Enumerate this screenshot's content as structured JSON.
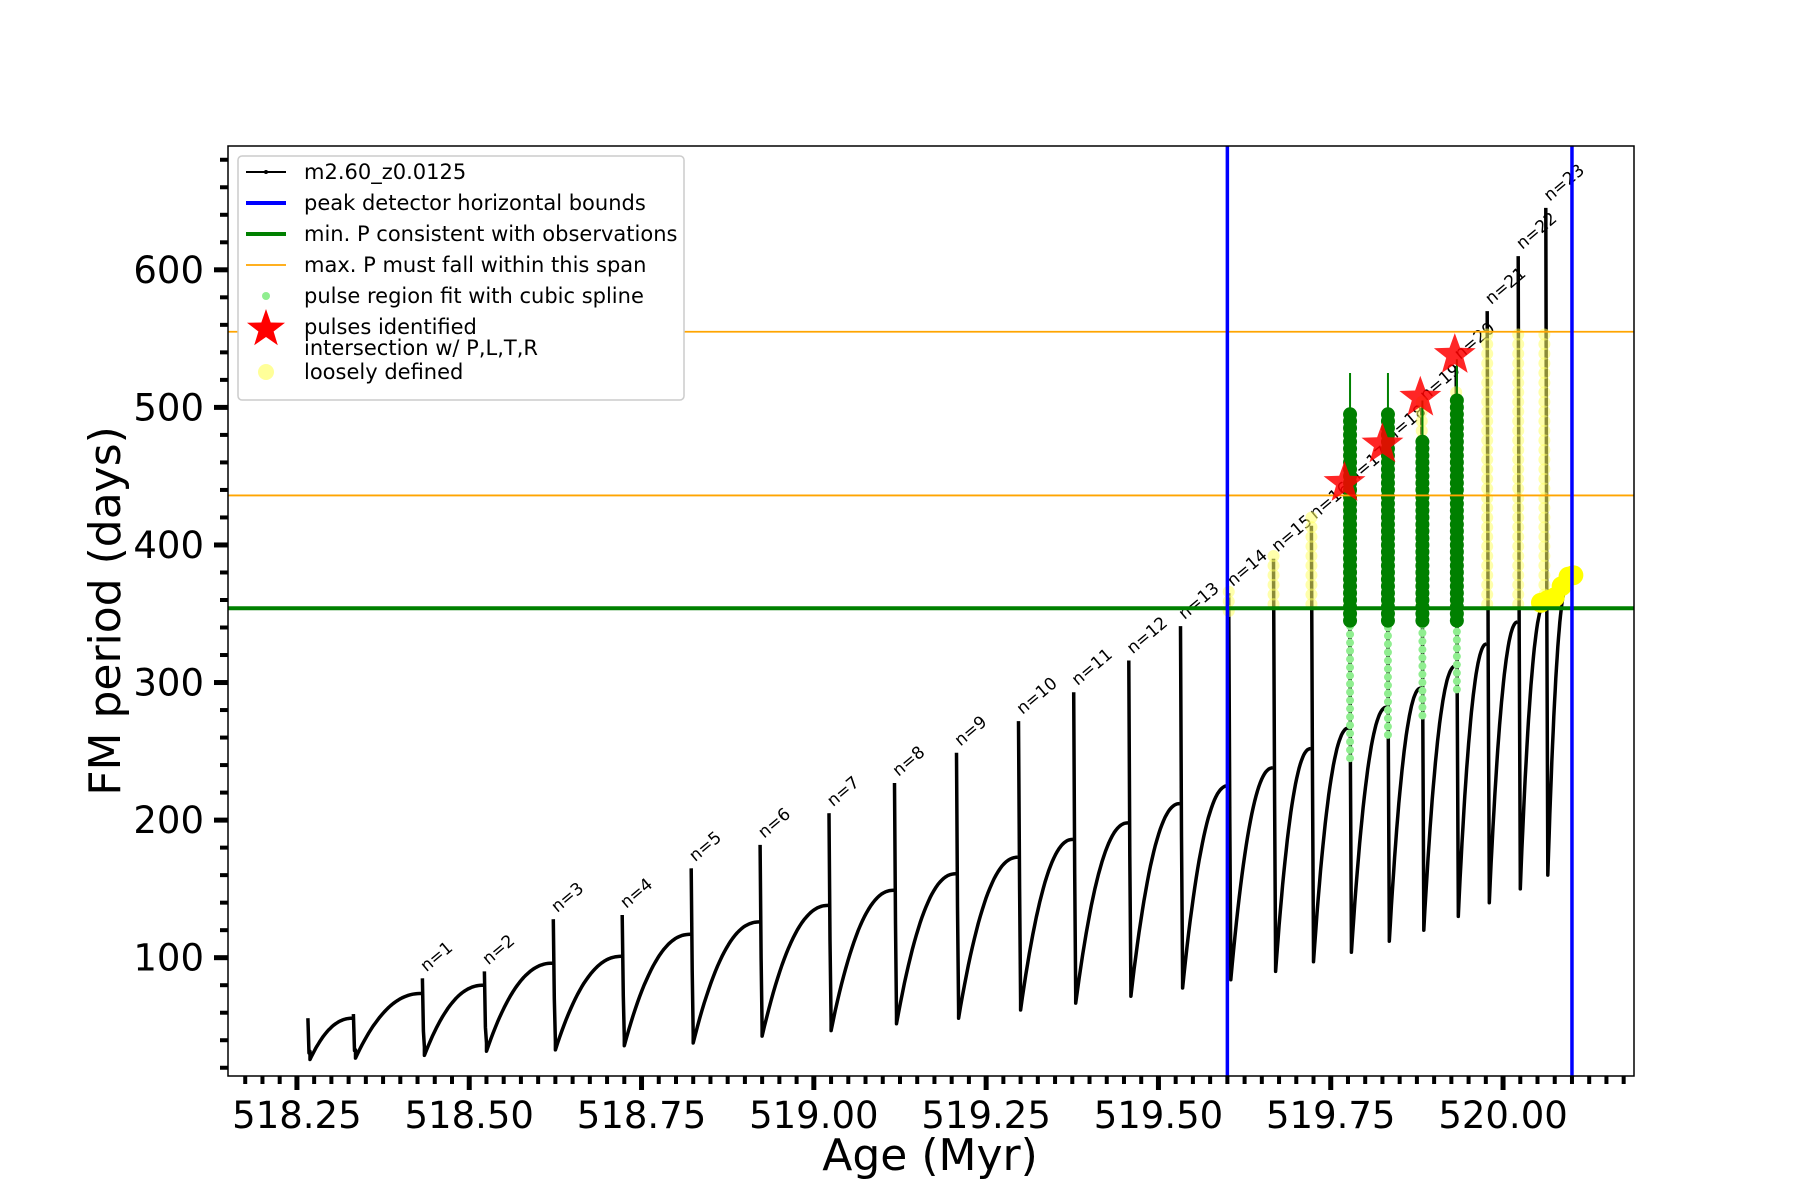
{
  "chart_data": {
    "type": "line",
    "xlabel": "Age (Myr)",
    "ylabel": "FM period (days)",
    "xlim": [
      518.15,
      520.19
    ],
    "ylim": [
      14,
      690
    ],
    "x_ticks": [
      518.25,
      518.5,
      518.75,
      519.0,
      519.25,
      519.5,
      519.75,
      520.0
    ],
    "x_tick_labels": [
      "518.25",
      "518.50",
      "518.75",
      "519.00",
      "519.25",
      "519.50",
      "519.75",
      "520.00"
    ],
    "y_ticks": [
      100,
      200,
      300,
      400,
      500,
      600
    ],
    "y_tick_labels": [
      "100",
      "200",
      "300",
      "400",
      "500",
      "600"
    ],
    "grid": false,
    "legend_location": "upper-left",
    "legend": [
      {
        "label": "m2.60_z0.0125",
        "marker": "line-dot",
        "color": "#000000"
      },
      {
        "label": "peak detector horizontal bounds",
        "marker": "line",
        "color": "#0000ff"
      },
      {
        "label": "min. P consistent with observations",
        "marker": "line",
        "color": "#008000"
      },
      {
        "label": "max. P must fall within this span",
        "marker": "thin-line",
        "color": "#ffa500"
      },
      {
        "label": "pulse region fit with cubic spline",
        "marker": "dot",
        "color": "#90ee90"
      },
      {
        "label": "pulses identified",
        "marker": "star",
        "color": "#ff0000"
      },
      {
        "label": "intersection w/ P,L,T,R\nloosely defined",
        "marker": "circle",
        "color": "#ffff99"
      }
    ],
    "vertical_lines": [
      {
        "x": 519.6,
        "color": "#0000ff"
      },
      {
        "x": 520.1,
        "color": "#0000ff"
      }
    ],
    "horizontal_lines": [
      {
        "y": 354,
        "color": "#008000"
      },
      {
        "y": 436,
        "color": "#ffa500"
      },
      {
        "y": 555,
        "color": "#ffa500"
      }
    ],
    "series": [
      {
        "name": "m2.60_z0.0125",
        "color": "#000000",
        "cycles": [
          {
            "start": 518.266,
            "end": 518.332,
            "min": 26,
            "top": 56,
            "spike": 56,
            "label": ""
          },
          {
            "start": 518.332,
            "end": 518.432,
            "min": 27,
            "top": 74,
            "spike": 59,
            "label": ""
          },
          {
            "start": 518.432,
            "end": 518.522,
            "min": 29,
            "top": 80,
            "spike": 85,
            "label": "n=1"
          },
          {
            "start": 518.522,
            "end": 518.622,
            "min": 32,
            "top": 96,
            "spike": 90,
            "label": "n=2"
          },
          {
            "start": 518.622,
            "end": 518.722,
            "min": 33,
            "top": 101,
            "spike": 128,
            "label": "n=3"
          },
          {
            "start": 518.722,
            "end": 518.822,
            "min": 36,
            "top": 117,
            "spike": 131,
            "label": "n=4"
          },
          {
            "start": 518.822,
            "end": 518.922,
            "min": 38,
            "top": 126,
            "spike": 165,
            "label": "n=5"
          },
          {
            "start": 518.922,
            "end": 519.022,
            "min": 43,
            "top": 138,
            "spike": 182,
            "label": "n=6"
          },
          {
            "start": 519.022,
            "end": 519.117,
            "min": 47,
            "top": 149,
            "spike": 205,
            "label": "n=7"
          },
          {
            "start": 519.117,
            "end": 519.207,
            "min": 52,
            "top": 161,
            "spike": 227,
            "label": "n=8"
          },
          {
            "start": 519.207,
            "end": 519.297,
            "min": 56,
            "top": 173,
            "spike": 249,
            "label": "n=9"
          },
          {
            "start": 519.297,
            "end": 519.377,
            "min": 62,
            "top": 186,
            "spike": 272,
            "label": "n=10"
          },
          {
            "start": 519.377,
            "end": 519.457,
            "min": 67,
            "top": 198,
            "spike": 293,
            "label": "n=11"
          },
          {
            "start": 519.457,
            "end": 519.532,
            "min": 72,
            "top": 212,
            "spike": 316,
            "label": "n=12"
          },
          {
            "start": 519.532,
            "end": 519.602,
            "min": 78,
            "top": 225,
            "spike": 341,
            "label": "n=13"
          },
          {
            "start": 519.602,
            "end": 519.667,
            "min": 84,
            "top": 238,
            "spike": 365,
            "label": "n=14"
          },
          {
            "start": 519.667,
            "end": 519.722,
            "min": 90,
            "top": 252,
            "spike": 390,
            "label": "n=15"
          },
          {
            "start": 519.722,
            "end": 519.777,
            "min": 97,
            "top": 267,
            "spike": 414,
            "label": "n=16"
          },
          {
            "start": 519.777,
            "end": 519.832,
            "min": 104,
            "top": 282,
            "spike": 440,
            "label": "n=17"
          },
          {
            "start": 519.832,
            "end": 519.882,
            "min": 112,
            "top": 296,
            "spike": 470,
            "label": "n=18"
          },
          {
            "start": 519.882,
            "end": 519.932,
            "min": 120,
            "top": 312,
            "spike": 500,
            "label": "n=19"
          },
          {
            "start": 519.932,
            "end": 519.977,
            "min": 130,
            "top": 328,
            "spike": 530,
            "label": "n=20"
          },
          {
            "start": 519.977,
            "end": 520.022,
            "min": 140,
            "top": 344,
            "spike": 570,
            "label": "n=21"
          },
          {
            "start": 520.022,
            "end": 520.062,
            "min": 150,
            "top": 358,
            "spike": 610,
            "label": "n=22"
          },
          {
            "start": 520.062,
            "end": 520.095,
            "min": 160,
            "top": 372,
            "spike": 645,
            "label": "n=23"
          }
        ]
      },
      {
        "name": "pulse region fit with cubic spline",
        "color": "#90ee90",
        "columns": [
          {
            "x": 519.778,
            "y_min": 245,
            "y_max": 525
          },
          {
            "x": 519.833,
            "y_min": 262,
            "y_max": 525
          },
          {
            "x": 519.883,
            "y_min": 276,
            "y_max": 505
          },
          {
            "x": 519.933,
            "y_min": 295,
            "y_max": 535
          }
        ]
      },
      {
        "name": "pulses identified",
        "color": "#ff0000",
        "points": [
          {
            "x": 519.77,
            "y": 445
          },
          {
            "x": 519.825,
            "y": 473
          },
          {
            "x": 519.88,
            "y": 507
          },
          {
            "x": 519.93,
            "y": 538
          }
        ]
      },
      {
        "name": "intersection w/ P,L,T,R loosely defined",
        "color": "#ffff00",
        "columns": [
          {
            "x": 519.602,
            "y_min": 352,
            "y_max": 372
          },
          {
            "x": 519.667,
            "y_min": 357,
            "y_max": 394
          },
          {
            "x": 519.722,
            "y_min": 357,
            "y_max": 420
          },
          {
            "x": 519.777,
            "y_min": 357,
            "y_max": 495
          },
          {
            "x": 519.832,
            "y_min": 357,
            "y_max": 495
          },
          {
            "x": 519.882,
            "y_min": 357,
            "y_max": 505
          },
          {
            "x": 519.932,
            "y_min": 357,
            "y_max": 515
          },
          {
            "x": 519.977,
            "y_min": 357,
            "y_max": 555
          },
          {
            "x": 520.022,
            "y_min": 357,
            "y_max": 555
          },
          {
            "x": 520.06,
            "y_min": 357,
            "y_max": 555
          }
        ],
        "tail_points": [
          {
            "x": 520.055,
            "y": 358
          },
          {
            "x": 520.065,
            "y": 360
          },
          {
            "x": 520.075,
            "y": 362
          },
          {
            "x": 520.085,
            "y": 370
          },
          {
            "x": 520.095,
            "y": 377
          },
          {
            "x": 520.102,
            "y": 378
          }
        ]
      }
    ]
  }
}
